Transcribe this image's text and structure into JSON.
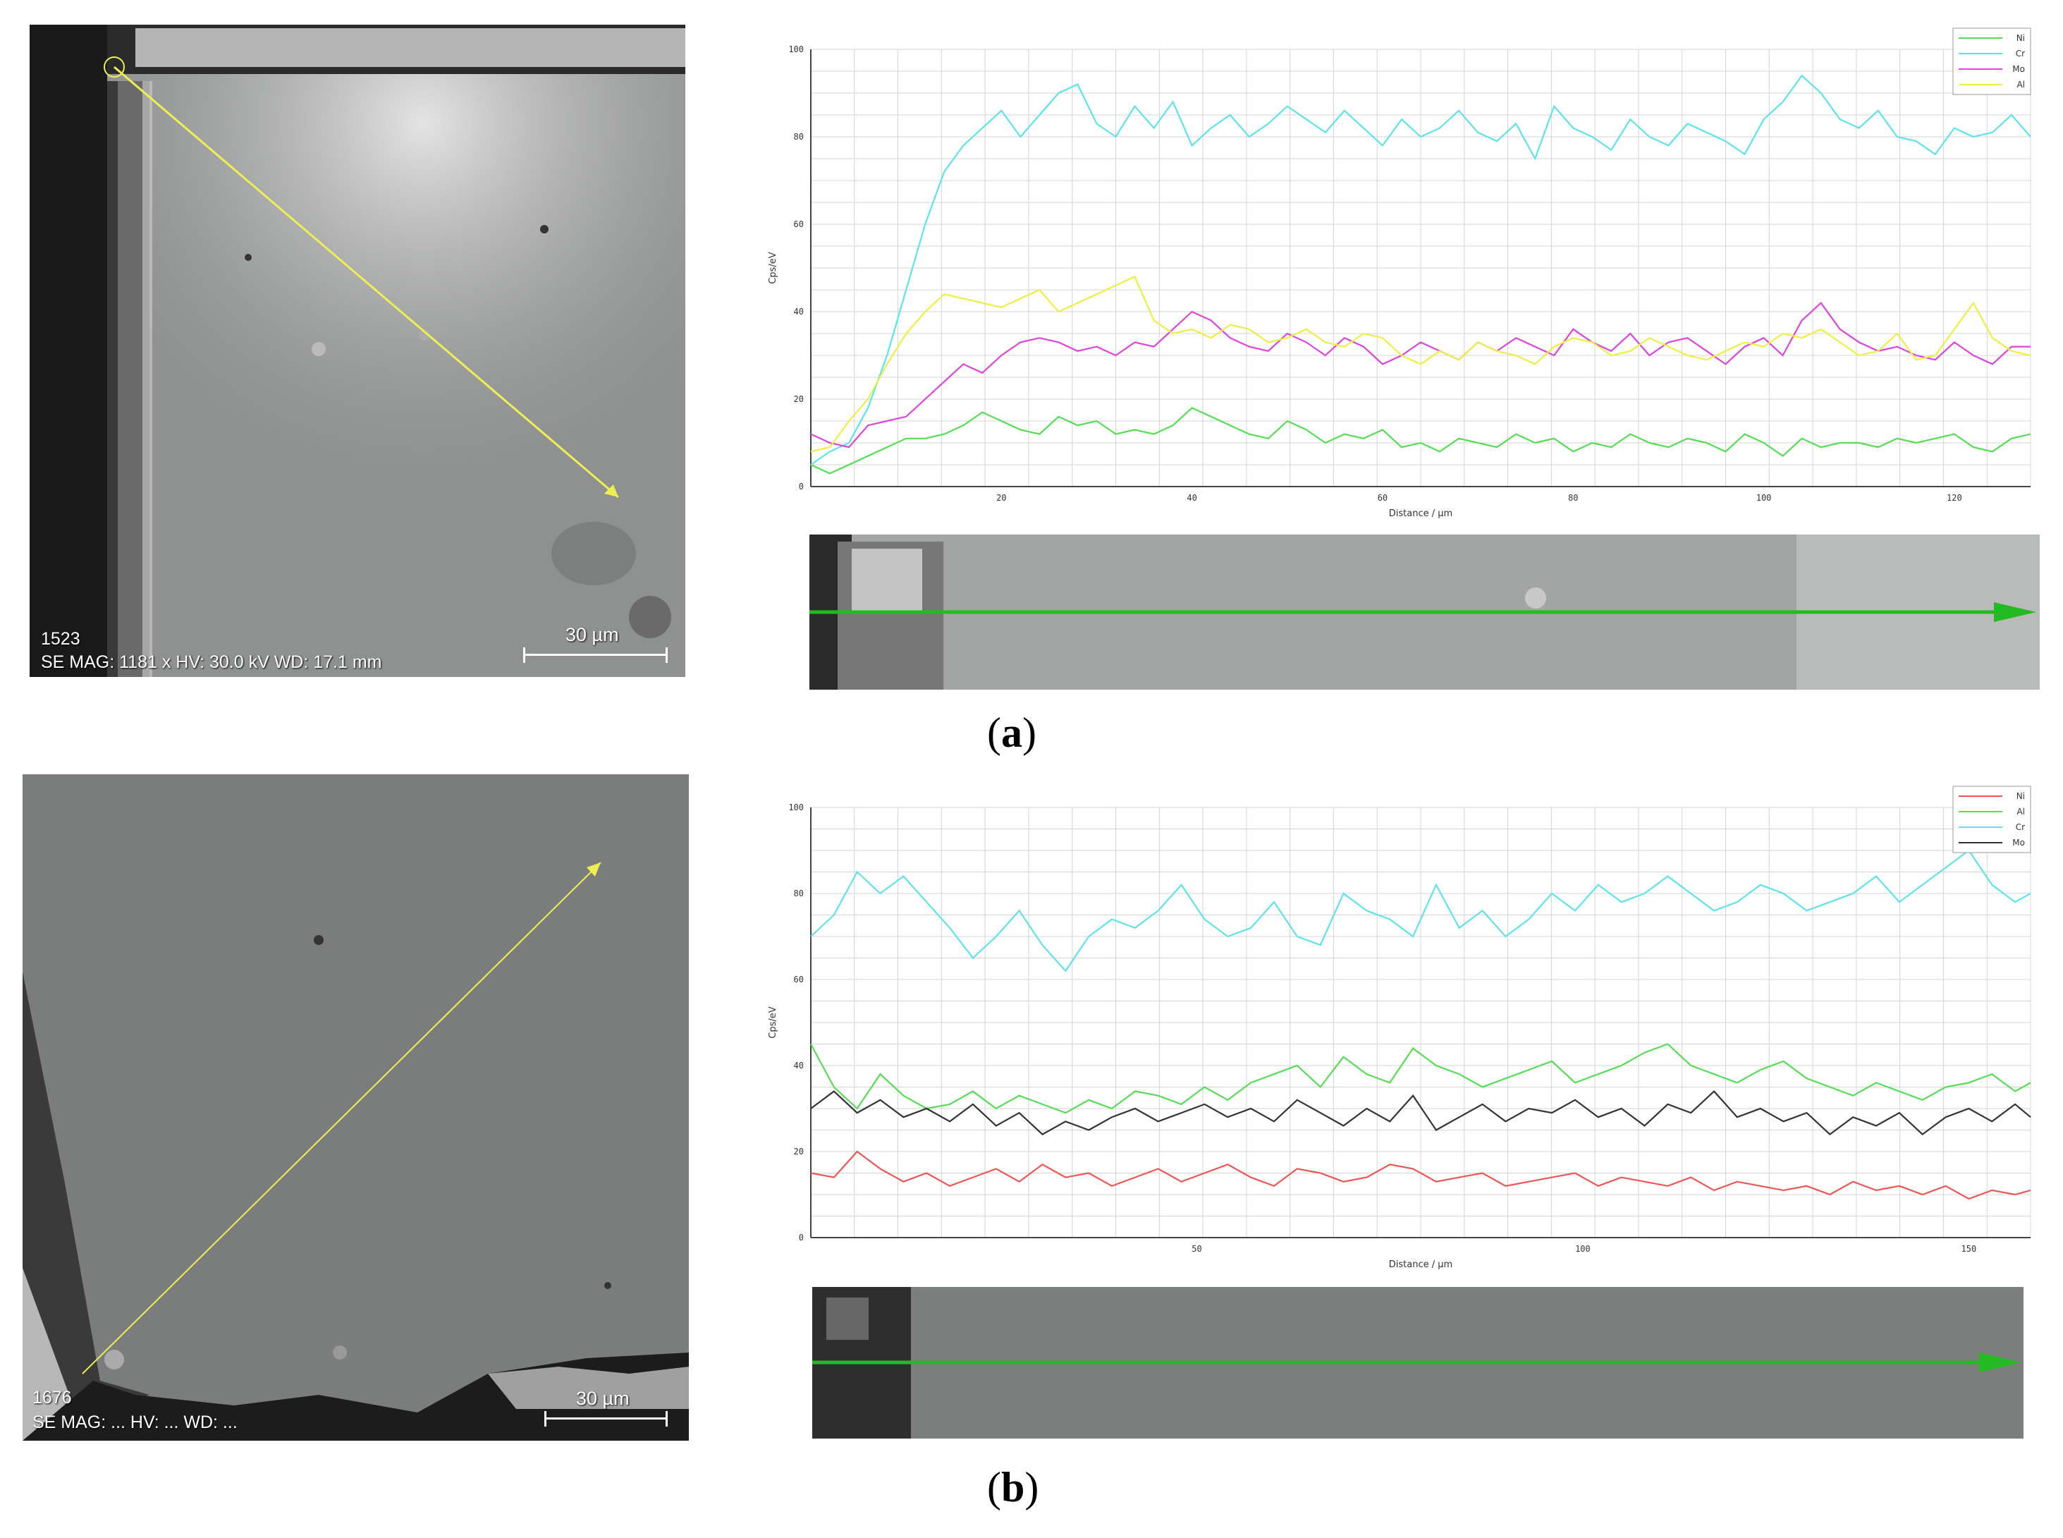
{
  "figure": {
    "panels": [
      {
        "id": "a",
        "label": "a",
        "sem": {
          "sample_id": "1523",
          "info_line": "SE MAG: 1181 x HV: 30.0 kV WD: 17.1 mm",
          "scale_bar": "30 µm"
        }
      },
      {
        "id": "b",
        "label": "b",
        "sem": {
          "sample_id": "1676",
          "info_line": "SE MAG: ... HV: ... WD: ...",
          "scale_bar": "30 µm"
        }
      }
    ]
  },
  "chart_data": [
    {
      "type": "line",
      "xlabel": "Distance / µm",
      "ylabel": "Cps/eV",
      "xlim": [
        0,
        128
      ],
      "ylim": [
        0,
        100
      ],
      "xticks": [
        20,
        40,
        60,
        80,
        100,
        120
      ],
      "yticks": [
        0,
        20,
        40,
        60,
        80,
        100
      ],
      "legend": "top-right",
      "grid": true,
      "series": [
        {
          "name": "Ni",
          "color": "#55dd55",
          "x": [
            0,
            2,
            4,
            6,
            8,
            10,
            12,
            14,
            16,
            18,
            20,
            22,
            24,
            26,
            28,
            30,
            32,
            34,
            36,
            38,
            40,
            42,
            44,
            46,
            48,
            50,
            52,
            54,
            56,
            58,
            60,
            62,
            64,
            66,
            68,
            70,
            72,
            74,
            76,
            78,
            80,
            82,
            84,
            86,
            88,
            90,
            92,
            94,
            96,
            98,
            100,
            102,
            104,
            106,
            108,
            110,
            112,
            114,
            116,
            118,
            120,
            122,
            124,
            126,
            128
          ],
          "y": [
            5,
            3,
            5,
            7,
            9,
            11,
            11,
            12,
            14,
            17,
            15,
            13,
            12,
            16,
            14,
            15,
            12,
            13,
            12,
            14,
            18,
            16,
            14,
            12,
            11,
            15,
            13,
            10,
            12,
            11,
            13,
            9,
            10,
            8,
            11,
            10,
            9,
            12,
            10,
            11,
            8,
            10,
            9,
            12,
            10,
            9,
            11,
            10,
            8,
            12,
            10,
            7,
            11,
            9,
            10,
            10,
            9,
            11,
            10,
            11,
            12,
            9,
            8,
            11,
            12
          ]
        },
        {
          "name": "Cr",
          "color": "#5ee3ee",
          "x": [
            0,
            2,
            4,
            6,
            8,
            10,
            12,
            14,
            16,
            18,
            20,
            22,
            24,
            26,
            28,
            30,
            32,
            34,
            36,
            38,
            40,
            42,
            44,
            46,
            48,
            50,
            52,
            54,
            56,
            58,
            60,
            62,
            64,
            66,
            68,
            70,
            72,
            74,
            76,
            78,
            80,
            82,
            84,
            86,
            88,
            90,
            92,
            94,
            96,
            98,
            100,
            102,
            104,
            106,
            108,
            110,
            112,
            114,
            116,
            118,
            120,
            122,
            124,
            126,
            128
          ],
          "y": [
            5,
            8,
            10,
            18,
            30,
            45,
            60,
            72,
            78,
            82,
            86,
            80,
            85,
            90,
            92,
            83,
            80,
            87,
            82,
            88,
            78,
            82,
            85,
            80,
            83,
            87,
            84,
            81,
            86,
            82,
            78,
            84,
            80,
            82,
            86,
            81,
            79,
            83,
            75,
            87,
            82,
            80,
            77,
            84,
            80,
            78,
            83,
            81,
            79,
            76,
            84,
            88,
            94,
            90,
            84,
            82,
            86,
            80,
            79,
            76,
            82,
            80,
            81,
            85,
            80
          ]
        },
        {
          "name": "Mo",
          "color": "#dd44dd",
          "x": [
            0,
            2,
            4,
            6,
            8,
            10,
            12,
            14,
            16,
            18,
            20,
            22,
            24,
            26,
            28,
            30,
            32,
            34,
            36,
            38,
            40,
            42,
            44,
            46,
            48,
            50,
            52,
            54,
            56,
            58,
            60,
            62,
            64,
            66,
            68,
            70,
            72,
            74,
            76,
            78,
            80,
            82,
            84,
            86,
            88,
            90,
            92,
            94,
            96,
            98,
            100,
            102,
            104,
            106,
            108,
            110,
            112,
            114,
            116,
            118,
            120,
            122,
            124,
            126,
            128
          ],
          "y": [
            12,
            10,
            9,
            14,
            15,
            16,
            20,
            24,
            28,
            26,
            30,
            33,
            34,
            33,
            31,
            32,
            30,
            33,
            32,
            36,
            40,
            38,
            34,
            32,
            31,
            35,
            33,
            30,
            34,
            32,
            28,
            30,
            33,
            31,
            29,
            33,
            31,
            34,
            32,
            30,
            36,
            33,
            31,
            35,
            30,
            33,
            34,
            31,
            28,
            32,
            34,
            30,
            38,
            42,
            36,
            33,
            31,
            32,
            30,
            29,
            33,
            30,
            28,
            32,
            32
          ]
        },
        {
          "name": "Al",
          "color": "#eeee44",
          "x": [
            0,
            2,
            4,
            6,
            8,
            10,
            12,
            14,
            16,
            18,
            20,
            22,
            24,
            26,
            28,
            30,
            32,
            34,
            36,
            38,
            40,
            42,
            44,
            46,
            48,
            50,
            52,
            54,
            56,
            58,
            60,
            62,
            64,
            66,
            68,
            70,
            72,
            74,
            76,
            78,
            80,
            82,
            84,
            86,
            88,
            90,
            92,
            94,
            96,
            98,
            100,
            102,
            104,
            106,
            108,
            110,
            112,
            114,
            116,
            118,
            120,
            122,
            124,
            126,
            128
          ],
          "y": [
            8,
            9,
            15,
            20,
            28,
            35,
            40,
            44,
            43,
            42,
            41,
            43,
            45,
            40,
            42,
            44,
            46,
            48,
            38,
            35,
            36,
            34,
            37,
            36,
            33,
            34,
            36,
            33,
            32,
            35,
            34,
            30,
            28,
            31,
            29,
            33,
            31,
            30,
            28,
            32,
            34,
            33,
            30,
            31,
            34,
            32,
            30,
            29,
            31,
            33,
            32,
            35,
            34,
            36,
            33,
            30,
            31,
            35,
            29,
            30,
            36,
            42,
            34,
            31,
            30
          ]
        }
      ]
    },
    {
      "type": "line",
      "xlabel": "Distance / µm",
      "ylabel": "Cps/eV",
      "xlim": [
        0,
        158
      ],
      "ylim": [
        0,
        100
      ],
      "xticks": [
        50,
        100,
        150
      ],
      "yticks": [
        0,
        20,
        40,
        60,
        80,
        100
      ],
      "legend": "top-right",
      "grid": true,
      "series": [
        {
          "name": "Ni",
          "color": "#ee5555",
          "x": [
            0,
            3,
            6,
            9,
            12,
            15,
            18,
            21,
            24,
            27,
            30,
            33,
            36,
            39,
            42,
            45,
            48,
            51,
            54,
            57,
            60,
            63,
            66,
            69,
            72,
            75,
            78,
            81,
            84,
            87,
            90,
            93,
            96,
            99,
            102,
            105,
            108,
            111,
            114,
            117,
            120,
            123,
            126,
            129,
            132,
            135,
            138,
            141,
            144,
            147,
            150,
            153,
            156,
            158
          ],
          "y": [
            15,
            14,
            20,
            16,
            13,
            15,
            12,
            14,
            16,
            13,
            17,
            14,
            15,
            12,
            14,
            16,
            13,
            15,
            17,
            14,
            12,
            16,
            15,
            13,
            14,
            17,
            16,
            13,
            14,
            15,
            12,
            13,
            14,
            15,
            12,
            14,
            13,
            12,
            14,
            11,
            13,
            12,
            11,
            12,
            10,
            13,
            11,
            12,
            10,
            12,
            9,
            11,
            10,
            11
          ]
        },
        {
          "name": "Al",
          "color": "#55dd55",
          "x": [
            0,
            3,
            6,
            9,
            12,
            15,
            18,
            21,
            24,
            27,
            30,
            33,
            36,
            39,
            42,
            45,
            48,
            51,
            54,
            57,
            60,
            63,
            66,
            69,
            72,
            75,
            78,
            81,
            84,
            87,
            90,
            93,
            96,
            99,
            102,
            105,
            108,
            111,
            114,
            117,
            120,
            123,
            126,
            129,
            132,
            135,
            138,
            141,
            144,
            147,
            150,
            153,
            156,
            158
          ],
          "y": [
            45,
            35,
            30,
            38,
            33,
            30,
            31,
            34,
            30,
            33,
            31,
            29,
            32,
            30,
            34,
            33,
            31,
            35,
            32,
            36,
            38,
            40,
            35,
            42,
            38,
            36,
            44,
            40,
            38,
            35,
            37,
            39,
            41,
            36,
            38,
            40,
            43,
            45,
            40,
            38,
            36,
            39,
            41,
            37,
            35,
            33,
            36,
            34,
            32,
            35,
            36,
            38,
            34,
            36
          ]
        },
        {
          "name": "Cr",
          "color": "#5ee3ee",
          "x": [
            0,
            3,
            6,
            9,
            12,
            15,
            18,
            21,
            24,
            27,
            30,
            33,
            36,
            39,
            42,
            45,
            48,
            51,
            54,
            57,
            60,
            63,
            66,
            69,
            72,
            75,
            78,
            81,
            84,
            87,
            90,
            93,
            96,
            99,
            102,
            105,
            108,
            111,
            114,
            117,
            120,
            123,
            126,
            129,
            132,
            135,
            138,
            141,
            144,
            147,
            150,
            153,
            156,
            158
          ],
          "y": [
            70,
            75,
            85,
            80,
            84,
            78,
            72,
            65,
            70,
            76,
            68,
            62,
            70,
            74,
            72,
            76,
            82,
            74,
            70,
            72,
            78,
            70,
            68,
            80,
            76,
            74,
            70,
            82,
            72,
            76,
            70,
            74,
            80,
            76,
            82,
            78,
            80,
            84,
            80,
            76,
            78,
            82,
            80,
            76,
            78,
            80,
            84,
            78,
            82,
            86,
            90,
            82,
            78,
            80
          ]
        },
        {
          "name": "Mo",
          "color": "#333333",
          "x": [
            0,
            3,
            6,
            9,
            12,
            15,
            18,
            21,
            24,
            27,
            30,
            33,
            36,
            39,
            42,
            45,
            48,
            51,
            54,
            57,
            60,
            63,
            66,
            69,
            72,
            75,
            78,
            81,
            84,
            87,
            90,
            93,
            96,
            99,
            102,
            105,
            108,
            111,
            114,
            117,
            120,
            123,
            126,
            129,
            132,
            135,
            138,
            141,
            144,
            147,
            150,
            153,
            156,
            158
          ],
          "y": [
            30,
            34,
            29,
            32,
            28,
            30,
            27,
            31,
            26,
            29,
            24,
            27,
            25,
            28,
            30,
            27,
            29,
            31,
            28,
            30,
            27,
            32,
            29,
            26,
            30,
            27,
            33,
            25,
            28,
            31,
            27,
            30,
            29,
            32,
            28,
            30,
            26,
            31,
            29,
            34,
            28,
            30,
            27,
            29,
            24,
            28,
            26,
            29,
            24,
            28,
            30,
            27,
            31,
            28
          ]
        }
      ]
    }
  ],
  "strips": [
    {
      "arrow_color": "#22bb22"
    },
    {
      "arrow_color": "#22bb22"
    }
  ],
  "colors": {
    "sem_gray": "#8a8c8c",
    "line_yellow": "#eeee55",
    "arrow_green": "#22bb22"
  }
}
